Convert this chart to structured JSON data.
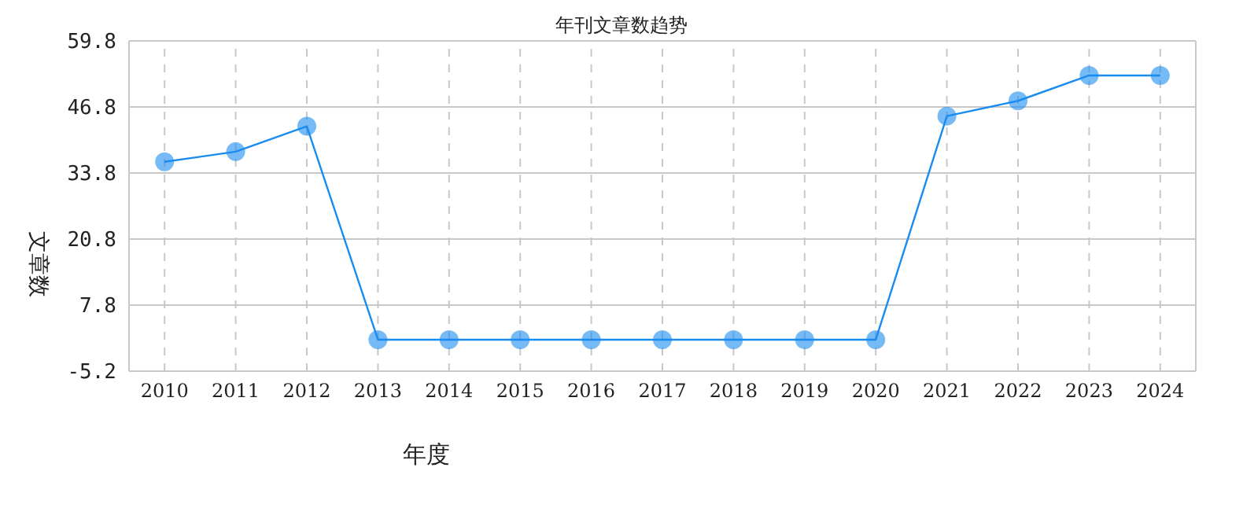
{
  "chart_data": {
    "type": "line",
    "title": "年刊文章数趋势",
    "xlabel": "年度",
    "ylabel": "文章数",
    "categories": [
      "2010",
      "2011",
      "2012",
      "2013",
      "2014",
      "2015",
      "2016",
      "2017",
      "2018",
      "2019",
      "2020",
      "2021",
      "2022",
      "2023",
      "2024"
    ],
    "series": [
      {
        "color": "#1a8cf0",
        "values": [
          36,
          38,
          43,
          1,
          1,
          1,
          1,
          1,
          1,
          1,
          1,
          45,
          48,
          53,
          53
        ]
      }
    ],
    "ylim": [
      -5.2,
      59.8
    ],
    "yticks": [
      -5.2,
      7.8,
      20.8,
      33.8,
      46.8,
      59.8
    ],
    "grid": true,
    "marker": "circle"
  }
}
